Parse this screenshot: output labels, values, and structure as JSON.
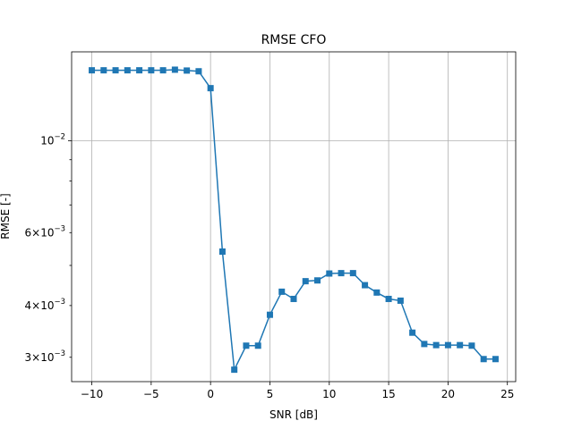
{
  "chart_data": {
    "type": "line",
    "title": "RMSE CFO",
    "xlabel": "SNR [dB]",
    "ylabel": "RMSE [-]",
    "xlim": [
      -11.7,
      25.7
    ],
    "ylim": [
      0.00262,
      0.0164
    ],
    "yscale": "log",
    "grid": true,
    "x_ticks": [
      {
        "value": -10,
        "label": "−10"
      },
      {
        "value": -5,
        "label": "−5"
      },
      {
        "value": 0,
        "label": "0"
      },
      {
        "value": 5,
        "label": "5"
      },
      {
        "value": 10,
        "label": "10"
      },
      {
        "value": 15,
        "label": "15"
      },
      {
        "value": 20,
        "label": "20"
      },
      {
        "value": 25,
        "label": "25"
      }
    ],
    "y_major_ticks": [
      {
        "value": 0.01,
        "base": "10",
        "exp": "−2"
      }
    ],
    "y_minor_ticks": [
      {
        "value": 0.003,
        "mant": "3",
        "exp": "−3"
      },
      {
        "value": 0.004,
        "mant": "4",
        "exp": "−3"
      },
      {
        "value": 0.006,
        "mant": "6",
        "exp": "−3"
      }
    ],
    "series": [
      {
        "color": "#1f77b4",
        "marker": "square",
        "x": [
          -10,
          -9,
          -8,
          -7,
          -6,
          -5,
          -4,
          -3,
          -2,
          -1,
          0,
          1,
          2,
          3,
          4,
          5,
          6,
          7,
          8,
          9,
          10,
          11,
          12,
          13,
          14,
          15,
          16,
          17,
          18,
          19,
          20,
          21,
          22,
          23,
          24
        ],
        "y": [
          0.0148,
          0.0148,
          0.0148,
          0.0148,
          0.0148,
          0.0148,
          0.0148,
          0.01485,
          0.01478,
          0.01472,
          0.0134,
          0.0054,
          0.0028,
          0.0032,
          0.0032,
          0.0038,
          0.00432,
          0.00415,
          0.00458,
          0.0046,
          0.00478,
          0.00479,
          0.00479,
          0.00448,
          0.0043,
          0.00415,
          0.00411,
          0.00344,
          0.00323,
          0.00321,
          0.00321,
          0.00321,
          0.0032,
          0.00297,
          0.00297
        ]
      }
    ]
  }
}
